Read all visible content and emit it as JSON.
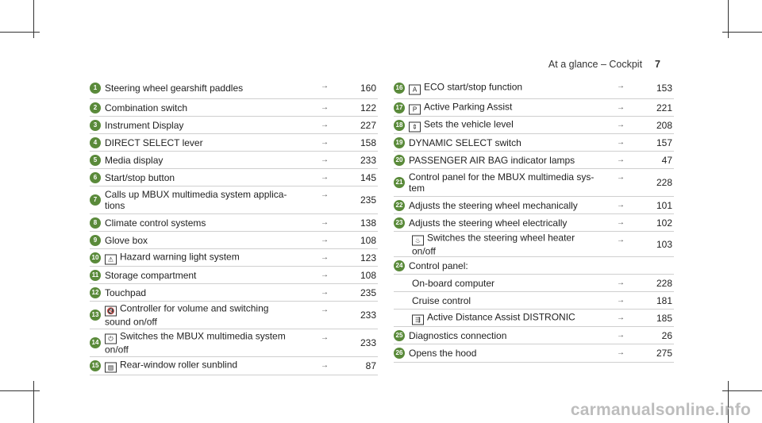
{
  "header": {
    "section": "At a glance – Cockpit",
    "page": "7"
  },
  "left_items": [
    {
      "n": "1",
      "text": "Steering wheel gearshift paddles",
      "page": "160"
    },
    {
      "n": "2",
      "text": "Combination switch",
      "page": "122"
    },
    {
      "n": "3",
      "text": "Instrument Display",
      "page": "227"
    },
    {
      "n": "4",
      "text": "DIRECT SELECT lever",
      "page": "158"
    },
    {
      "n": "5",
      "text": "Media display",
      "page": "233"
    },
    {
      "n": "6",
      "text": "Start/stop button",
      "page": "145"
    },
    {
      "n": "7",
      "text": "Calls up MBUX multimedia system applica-\ntions",
      "page": "235"
    },
    {
      "n": "8",
      "text": "Climate control systems",
      "page": "138"
    },
    {
      "n": "9",
      "text": "Glove box",
      "page": "108"
    },
    {
      "n": "10",
      "text": "Hazard warning light system",
      "page": "123",
      "icon": "hazard-icon",
      "glyph": "⚠"
    },
    {
      "n": "11",
      "text": "Storage compartment",
      "page": "108"
    },
    {
      "n": "12",
      "text": "Touchpad",
      "page": "235"
    },
    {
      "n": "13",
      "text": "Controller for volume and switching\nsound on/off",
      "page": "233",
      "icon": "mute-icon",
      "glyph": "🔇"
    },
    {
      "n": "14",
      "text": "Switches the MBUX multimedia system\non/off",
      "page": "233",
      "icon": "power-icon",
      "glyph": "⏻"
    },
    {
      "n": "15",
      "text": "Rear-window roller sunblind",
      "page": "87",
      "icon": "sunblind-icon",
      "glyph": "▤"
    }
  ],
  "right_items": [
    {
      "n": "16",
      "text": "ECO start/stop function",
      "page": "153",
      "icon": "eco-icon",
      "glyph": "A"
    },
    {
      "n": "17",
      "text": "Active Parking Assist",
      "page": "221",
      "icon": "parking-icon",
      "glyph": "P"
    },
    {
      "n": "18",
      "text": "Sets the vehicle level",
      "page": "208",
      "icon": "vehicle-level-icon",
      "glyph": "⇕"
    },
    {
      "n": "19",
      "text": "DYNAMIC SELECT switch",
      "page": "157"
    },
    {
      "n": "20",
      "text": "PASSENGER AIR BAG indicator lamps",
      "page": "47"
    },
    {
      "n": "21",
      "text": "Control panel for the MBUX multimedia sys-\ntem",
      "page": "228"
    },
    {
      "n": "22",
      "text": "Adjusts the steering wheel mechanically",
      "page": "101"
    },
    {
      "n": "23",
      "text": "Adjusts the steering wheel electrically",
      "page": "102"
    },
    {
      "n": "",
      "text": "Switches the steering wheel heater\non/off",
      "page": "103",
      "icon": "wheel-heater-icon",
      "glyph": "♨"
    },
    {
      "n": "24",
      "text": "Control panel:",
      "page": ""
    },
    {
      "n": "",
      "text": "On-board computer",
      "page": "228"
    },
    {
      "n": "",
      "text": "Cruise control",
      "page": "181"
    },
    {
      "n": "",
      "text": "Active Distance Assist DISTRONIC",
      "page": "185",
      "icon": "distronic-icon",
      "glyph": "⇶"
    },
    {
      "n": "25",
      "text": "Diagnostics connection",
      "page": "26"
    },
    {
      "n": "26",
      "text": "Opens the hood",
      "page": "275"
    }
  ],
  "arrow": "→",
  "watermark": "carmanualsonline.info"
}
